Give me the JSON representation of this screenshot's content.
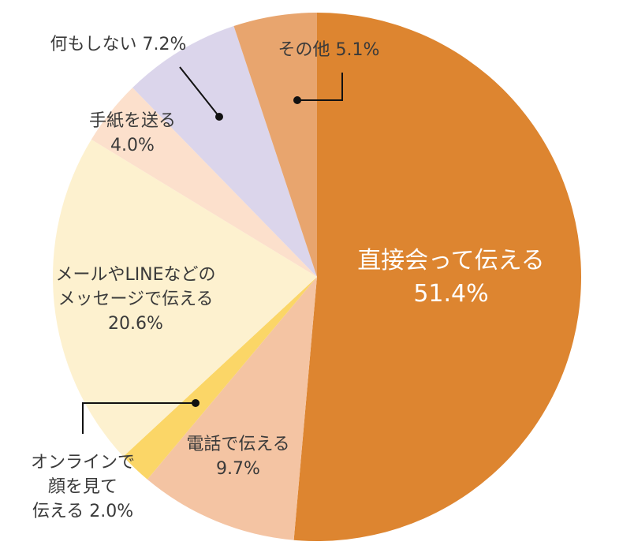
{
  "chart_data": {
    "type": "pie",
    "title": "",
    "slices": [
      {
        "label_lines": [
          "直接会って伝える",
          "51.4%"
        ],
        "value": 51.4,
        "color": "#dd8530"
      },
      {
        "label_lines": [
          "電話で伝える",
          "9.7%"
        ],
        "value": 9.7,
        "color": "#f4c4a3"
      },
      {
        "label_lines": [
          "オンラインで",
          "顔を見て",
          "伝える 2.0%"
        ],
        "value": 2.0,
        "color": "#fbd667"
      },
      {
        "label_lines": [
          "メールやLINEなどの",
          "メッセージで伝える",
          "20.6%"
        ],
        "value": 20.6,
        "color": "#fdf1cf"
      },
      {
        "label_lines": [
          "手紙を送る",
          "4.0%"
        ],
        "value": 4.0,
        "color": "#fce0cc"
      },
      {
        "label_lines": [
          "何もしない 7.2%"
        ],
        "value": 7.2,
        "color": "#dbd5eb"
      },
      {
        "label_lines": [
          "その他 5.1%"
        ],
        "value": 5.1,
        "color": "#e8a56e"
      }
    ],
    "start": "12 o'clock",
    "direction": "clockwise",
    "legend": "none"
  }
}
